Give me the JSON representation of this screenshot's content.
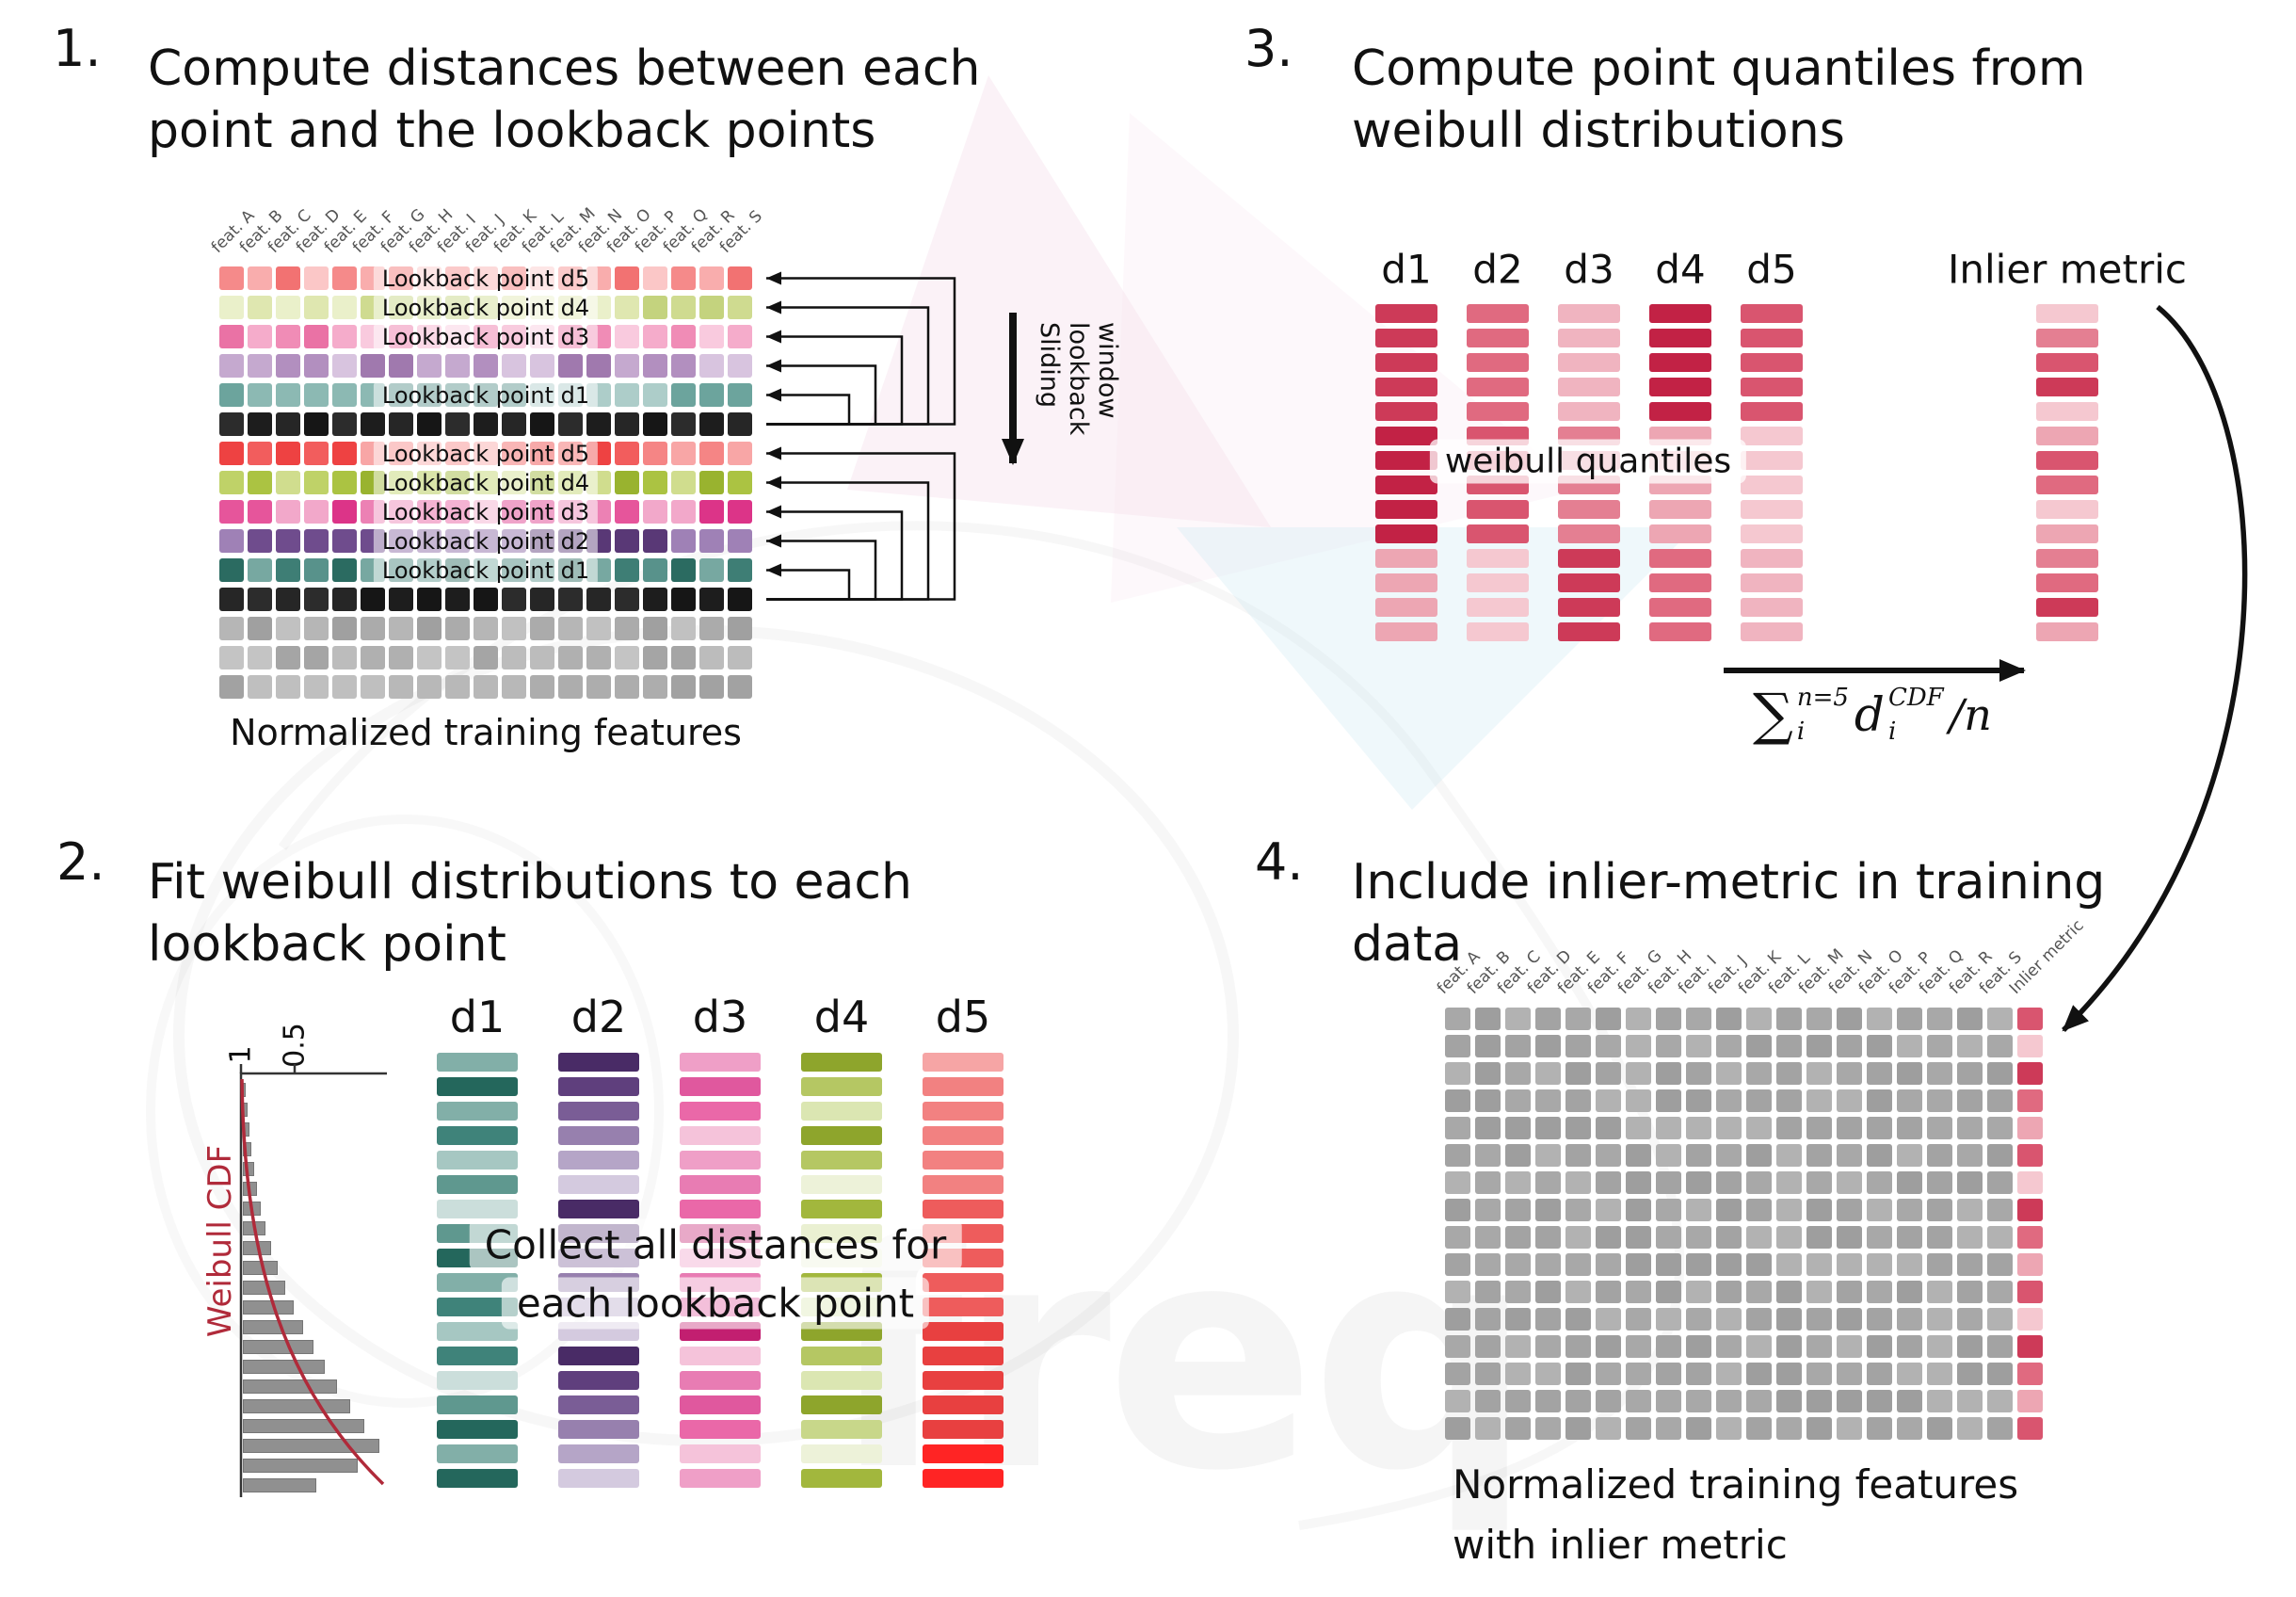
{
  "watermark": {
    "text": "freq"
  },
  "panel1": {
    "number": "1.",
    "title_line1": "Compute distances between each",
    "title_line2": "point and the lookback points",
    "caption": "Normalized training features",
    "sliding_lines": [
      "window",
      "lookback",
      "Sliding"
    ],
    "headers": [
      "feat. A",
      "feat. B",
      "feat. C",
      "feat. D",
      "feat. E",
      "feat. F",
      "feat. G",
      "feat. H",
      "feat. I",
      "feat. J",
      "feat. K",
      "feat. L",
      "feat. M",
      "feat. N",
      "feat. O",
      "feat. P",
      "feat. Q",
      "feat. R",
      "feat. S"
    ],
    "rows": [
      {
        "label": "Lookback point d5",
        "palette": [
          "#f58a8a",
          "#f9adad",
          "#f27272",
          "#fbc7c7"
        ]
      },
      {
        "label": "Lookback point d4",
        "palette": [
          "#cfdb90",
          "#dfe7b0",
          "#c4d37e",
          "#eaf0ca"
        ]
      },
      {
        "label": "Lookback point d3",
        "palette": [
          "#f08cb6",
          "#f5accb",
          "#ea72a5",
          "#f9cade"
        ]
      },
      {
        "label": "",
        "palette": [
          "#b28fbf",
          "#c5a9cf",
          "#a079ae",
          "#d8c4df"
        ]
      },
      {
        "label": "Lookback point d1",
        "palette": [
          "#6ca49d",
          "#8cb9b3",
          "#548f87",
          "#adcdc9"
        ]
      },
      {
        "label": "",
        "palette": [
          "#1d1d1d",
          "#262626",
          "#161616",
          "#2c2c2c"
        ]
      },
      {
        "label": "Lookback point d5",
        "palette": [
          "#f25d5d",
          "#f58585",
          "#ee4242",
          "#f8a6a6"
        ]
      },
      {
        "label": "Lookback point d4",
        "palette": [
          "#abc342",
          "#bfd268",
          "#99b32f",
          "#d0dd8e"
        ]
      },
      {
        "label": "Lookback point d3",
        "palette": [
          "#e6559b",
          "#ec81b4",
          "#dc3488",
          "#f2a8ca"
        ]
      },
      {
        "label": "Lookback point d2",
        "palette": [
          "#6f4c8d",
          "#8663a1",
          "#593876",
          "#9f81b6"
        ]
      },
      {
        "label": "Lookback point d1",
        "palette": [
          "#3e7e75",
          "#58928b",
          "#2b6b61",
          "#77a8a1"
        ]
      },
      {
        "label": "",
        "palette": [
          "#1d1d1d",
          "#262626",
          "#161616",
          "#2c2c2c"
        ]
      },
      {
        "label": "",
        "palette": [
          "#b6b6b6",
          "#ababab",
          "#c1c1c1",
          "#a0a0a0"
        ]
      },
      {
        "label": "",
        "palette": [
          "#b0b0b0",
          "#bcbcbc",
          "#a5a5a5",
          "#c4c4c4"
        ]
      },
      {
        "label": "",
        "palette": [
          "#b8b8b8",
          "#adadad",
          "#a2a2a2",
          "#bfbfbf"
        ]
      }
    ]
  },
  "panel2": {
    "number": "2.",
    "title_line1": "Fit weibull distributions to each",
    "title_line2": "lookback point",
    "plot": {
      "tick_1": "1",
      "tick_05": "0.5",
      "axis_label": "Weibull CDF",
      "bar_lengths": [
        3,
        5,
        7,
        9,
        12,
        15,
        19,
        24,
        30,
        37,
        45,
        54,
        64,
        75,
        87,
        100,
        114,
        129,
        145,
        122,
        78
      ]
    },
    "overlay_line1": "Collect all distances for",
    "overlay_line2": "each lookback point",
    "bars_per_column": 18,
    "columns": [
      {
        "label": "d1",
        "palette": [
          "#3f837a",
          "#5f988f",
          "#82afa8",
          "#a6c7c2",
          "#cbdedb",
          "#24675c"
        ]
      },
      {
        "label": "d2",
        "palette": [
          "#5f3f7d",
          "#7a5d96",
          "#9780ae",
          "#b5a5c7",
          "#d4cadf",
          "#492b66"
        ]
      },
      {
        "label": "d3",
        "palette": [
          "#e0589e",
          "#e87cb3",
          "#ef9fc7",
          "#f5c3da",
          "#c21f70",
          "#ea68a8"
        ]
      },
      {
        "label": "d4",
        "palette": [
          "#a2b73d",
          "#b5c763",
          "#c8d78a",
          "#dbe6b2",
          "#edf2d9",
          "#8ea52c"
        ]
      },
      {
        "label": "d5",
        "palette": [
          "#ee5c5c",
          "#f28181",
          "#f6a5a5",
          "#fac9c9",
          "#ff2424",
          "#e84040"
        ]
      }
    ]
  },
  "panel3": {
    "number": "3.",
    "title_line1": "Compute point quantiles from",
    "title_line2": "weibull distributions",
    "column_labels": [
      "d1",
      "d2",
      "d3",
      "d4",
      "d5"
    ],
    "bars_per_column": 14,
    "palette": [
      "#c22245",
      "#d9556f",
      "#e47f92",
      "#eda6b3",
      "#f5c8d0",
      "#cd3a58",
      "#e06a80",
      "#f0b4c0"
    ],
    "inlier_palette": [
      "#d9556f",
      "#e47f92",
      "#eda6b3",
      "#f5c8d0",
      "#cd3a58",
      "#e06a80"
    ],
    "overlay": "weibull quantiles",
    "inlier_label": "Inlier metric",
    "formula": {
      "sigma": "∑",
      "sum_sup": "n=5",
      "sum_sub": "i",
      "term": "d",
      "term_sup": "CDF",
      "term_sub": "i",
      "tail": "/n"
    }
  },
  "panel4": {
    "number": "4.",
    "title_line1": "Include inlier-metric in training",
    "title_line2": "data",
    "headers": [
      "feat. A",
      "feat. B",
      "feat. C",
      "feat. D",
      "feat. E",
      "feat. F",
      "feat. G",
      "feat. H",
      "feat. I",
      "feat. J",
      "feat. K",
      "feat. L",
      "feat. M",
      "feat. N",
      "feat. O",
      "feat. P",
      "feat. Q",
      "feat. R",
      "feat. S",
      "Inlier metric"
    ],
    "rows": 16,
    "columns": 20,
    "gray_palette": [
      "#a8a8a8",
      "#9e9e9e",
      "#b2b2b2",
      "#a3a3a3"
    ],
    "inlier_palette": [
      "#e06a80",
      "#eda6b3",
      "#d9556f",
      "#f5c8d0",
      "#cd3a58"
    ],
    "caption_line1": "Normalized training features",
    "caption_line2": "with inlier metric"
  }
}
